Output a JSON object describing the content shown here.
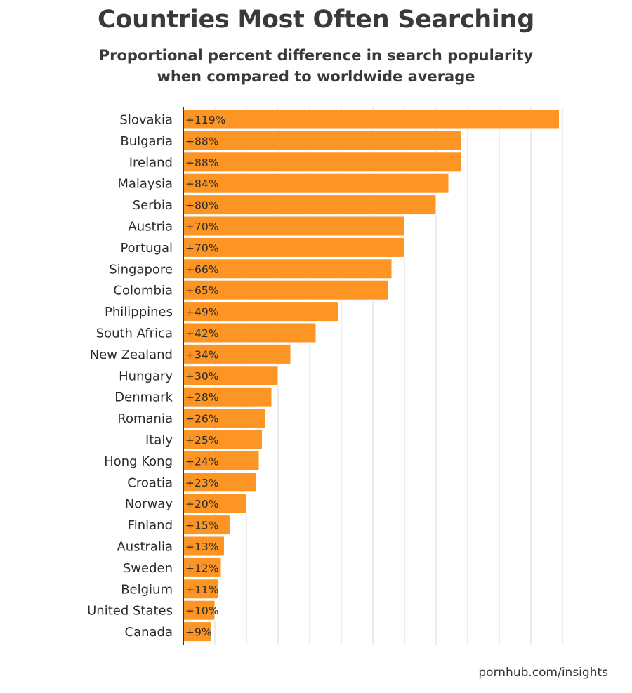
{
  "title": "Countries Most Often Searching",
  "subtitle_line1": "Proportional percent difference in search popularity",
  "subtitle_line2": "when compared to worldwide average",
  "source": "pornhub.com/insights",
  "colors": {
    "bar": "#fc9524",
    "bar_edge": "#ffffff",
    "grid": "#d9d9d9",
    "axis": "#333333",
    "label_text": "#2b2b2b"
  },
  "chart_data": {
    "type": "bar",
    "orientation": "horizontal",
    "title": "Countries Most Often Searching",
    "subtitle": "Proportional percent difference in search popularity when compared to worldwide average",
    "xlabel": "",
    "ylabel": "",
    "xlim": [
      0,
      120
    ],
    "grid": true,
    "categories": [
      "Slovakia",
      "Bulgaria",
      "Ireland",
      "Malaysia",
      "Serbia",
      "Austria",
      "Portugal",
      "Singapore",
      "Colombia",
      "Philippines",
      "South Africa",
      "New Zealand",
      "Hungary",
      "Denmark",
      "Romania",
      "Italy",
      "Hong Kong",
      "Croatia",
      "Norway",
      "Finland",
      "Australia",
      "Sweden",
      "Belgium",
      "United States",
      "Canada"
    ],
    "values": [
      119,
      88,
      88,
      84,
      80,
      70,
      70,
      66,
      65,
      49,
      42,
      34,
      30,
      28,
      26,
      25,
      24,
      23,
      20,
      15,
      13,
      12,
      11,
      10,
      9
    ],
    "data_labels": [
      "+119%",
      "+88%",
      "+88%",
      "+84%",
      "+80%",
      "+70%",
      "+70%",
      "+66%",
      "+65%",
      "+49%",
      "+42%",
      "+34%",
      "+30%",
      "+28%",
      "+26%",
      "+25%",
      "+24%",
      "+23%",
      "+20%",
      "+15%",
      "+13%",
      "+12%",
      "+11%",
      "+10%",
      "+9%"
    ]
  }
}
